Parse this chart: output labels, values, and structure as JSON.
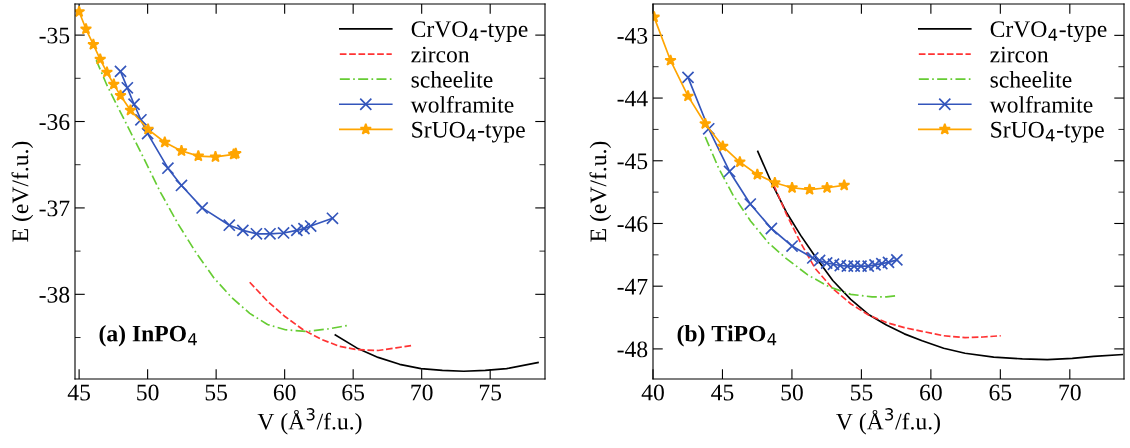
{
  "chart_data": [
    {
      "type": "line",
      "xlabel": "V (Å$^{3}$/f.u.)",
      "ylabel": "E (eV/f.u.)",
      "annotations": [
        "(a) InPO$_{4}$"
      ],
      "legend": "top right",
      "grid": false,
      "xlim": [
        44.7,
        79
      ],
      "xticks": [
        45,
        50,
        55,
        60,
        65,
        70,
        75
      ],
      "ylim": [
        -38.98,
        -34.64
      ],
      "yticks": [
        -38,
        {
          "value": -38.5,
          "label": null
        },
        {
          "value": -37.5,
          "label": null
        },
        -37,
        {
          "value": -36.5,
          "label": null
        },
        -36,
        {
          "value": -35.5,
          "label": null
        },
        -35
      ],
      "series": [
        {
          "name": "CrVO$_{4}$-type",
          "color": "#000000",
          "line_style": "solid",
          "marker": "none",
          "x": [
            63.7,
            65.26,
            66.82,
            68.39,
            69.95,
            71.51,
            73.07,
            74.64,
            76.2,
            78.49
          ],
          "values": [
            -38.47,
            -38.62,
            -38.73,
            -38.81,
            -38.86,
            -38.88,
            -38.89,
            -38.88,
            -38.86,
            -38.79
          ]
        },
        {
          "name": "zircon",
          "color": "#ff3333",
          "line_style": "dashed",
          "marker": "none",
          "x": [
            57.45,
            58.75,
            60.05,
            61.35,
            62.66,
            63.96,
            65.26,
            66.82,
            68.13,
            69.38
          ],
          "values": [
            -37.86,
            -38.08,
            -38.26,
            -38.41,
            -38.52,
            -38.6,
            -38.64,
            -38.65,
            -38.62,
            -38.59
          ]
        },
        {
          "name": "scheelite",
          "color": "#66cc33",
          "line_style": "dashdot",
          "marker": "none",
          "x": [
            46.25,
            47.03,
            48.33,
            49.64,
            50.94,
            52.24,
            53.54,
            54.84,
            56.15,
            57.45,
            58.75,
            60.05,
            61.61,
            63.18,
            64.61
          ],
          "values": [
            -35.29,
            -35.58,
            -35.99,
            -36.4,
            -36.82,
            -37.19,
            -37.52,
            -37.81,
            -38.04,
            -38.22,
            -38.35,
            -38.41,
            -38.43,
            -38.4,
            -38.36
          ]
        },
        {
          "name": "wolframite",
          "color": "#3355bb",
          "line_style": "solid",
          "marker": "cross",
          "x": [
            48.02,
            48.52,
            49.01,
            49.51,
            50.0,
            51.48,
            52.47,
            53.98,
            55.96,
            56.95,
            57.94,
            58.93,
            59.92,
            60.89,
            61.41,
            61.9,
            63.49
          ],
          "values": [
            -35.42,
            -35.61,
            -35.8,
            -35.98,
            -36.14,
            -36.54,
            -36.74,
            -37.0,
            -37.2,
            -37.26,
            -37.3,
            -37.3,
            -37.29,
            -37.26,
            -37.24,
            -37.21,
            -37.12
          ]
        },
        {
          "name": "SrUO$_{4}$-type",
          "color": "#ffa500",
          "line_style": "solid",
          "marker": "star",
          "x": [
            45.0,
            45.5,
            46.04,
            46.54,
            47.03,
            47.53,
            48.02,
            48.75,
            50.03,
            51.25,
            52.47,
            53.7,
            54.95,
            56.28,
            56.43
          ],
          "values": [
            -34.73,
            -34.93,
            -35.11,
            -35.28,
            -35.43,
            -35.57,
            -35.7,
            -35.87,
            -36.09,
            -36.24,
            -36.34,
            -36.4,
            -36.41,
            -36.38,
            -36.37
          ]
        }
      ]
    },
    {
      "type": "line",
      "xlabel": "V (Å$^{3}$/f.u.)",
      "ylabel": "E (eV/f.u.)",
      "annotations": [
        "(b) TiPO$_{4}$"
      ],
      "legend": "top right",
      "grid": false,
      "xlim": [
        40,
        73.9
      ],
      "xticks": [
        40,
        45,
        50,
        55,
        60,
        65,
        70
      ],
      "ylim": [
        -48.48,
        -42.5
      ],
      "yticks": [
        -48,
        {
          "value": -47.5,
          "label": null
        },
        -47,
        {
          "value": -46.5,
          "label": null
        },
        -46,
        {
          "value": -45.5,
          "label": null
        },
        -45,
        {
          "value": -44.5,
          "label": null
        },
        -44,
        {
          "value": -43.5,
          "label": null
        },
        -43
      ],
      "series": [
        {
          "name": "CrVO$_{4}$-type",
          "color": "#000000",
          "line_style": "solid",
          "marker": "none",
          "x": [
            47.54,
            48.57,
            49.6,
            50.63,
            51.65,
            52.94,
            54.23,
            55.51,
            56.8,
            58.09,
            59.37,
            60.92,
            62.46,
            64.52,
            66.58,
            68.38,
            70.18,
            71.72,
            73.78
          ],
          "values": [
            -44.85,
            -45.37,
            -45.82,
            -46.19,
            -46.52,
            -46.91,
            -47.21,
            -47.45,
            -47.62,
            -47.76,
            -47.87,
            -47.99,
            -48.07,
            -48.13,
            -48.16,
            -48.17,
            -48.15,
            -48.12,
            -48.09
          ]
        },
        {
          "name": "zircon",
          "color": "#ff3333",
          "line_style": "dashed",
          "marker": "none",
          "x": [
            48.7,
            49.6,
            50.63,
            51.65,
            52.94,
            54.23,
            55.51,
            56.8,
            58.09,
            59.37,
            60.92,
            62.46,
            63.75,
            65.03
          ],
          "values": [
            -45.39,
            -45.85,
            -46.31,
            -46.71,
            -47.04,
            -47.28,
            -47.46,
            -47.58,
            -47.66,
            -47.72,
            -47.79,
            -47.82,
            -47.81,
            -47.79
          ]
        },
        {
          "name": "scheelite",
          "color": "#66cc33",
          "line_style": "dashdot",
          "marker": "none",
          "x": [
            43.76,
            44.71,
            45.74,
            47.02,
            48.31,
            49.6,
            51.14,
            52.68,
            54.23,
            55.77,
            56.8,
            57.62
          ],
          "values": [
            -44.62,
            -45.11,
            -45.54,
            -45.96,
            -46.31,
            -46.56,
            -46.82,
            -47.01,
            -47.13,
            -47.17,
            -47.17,
            -47.15
          ]
        },
        {
          "name": "wolframite",
          "color": "#3355bb",
          "line_style": "solid",
          "marker": "cross",
          "x": [
            42.52,
            44.01,
            45.51,
            47.0,
            48.52,
            50.01,
            51.5,
            51.99,
            52.5,
            52.99,
            53.48,
            53.99,
            54.48,
            54.97,
            55.49,
            55.98,
            56.47,
            56.95,
            57.55
          ],
          "values": [
            -43.67,
            -44.49,
            -45.17,
            -45.69,
            -46.08,
            -46.36,
            -46.55,
            -46.59,
            -46.63,
            -46.65,
            -46.67,
            -46.68,
            -46.68,
            -46.68,
            -46.68,
            -46.66,
            -46.64,
            -46.62,
            -46.58
          ]
        },
        {
          "name": "SrUO$_{4}$-type",
          "color": "#ffa500",
          "line_style": "solid",
          "marker": "star",
          "x": [
            40.08,
            41.26,
            42.52,
            43.76,
            45.02,
            46.25,
            47.51,
            48.77,
            50.01,
            51.27,
            52.53,
            53.76
          ],
          "values": [
            -42.71,
            -43.4,
            -43.97,
            -44.41,
            -44.77,
            -45.02,
            -45.22,
            -45.35,
            -45.43,
            -45.46,
            -45.43,
            -45.39
          ]
        }
      ]
    }
  ]
}
